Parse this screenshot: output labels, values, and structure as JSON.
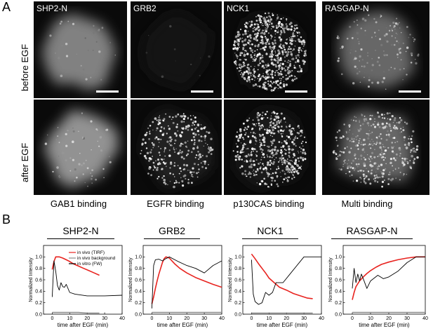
{
  "panel_a": {
    "letter": "A",
    "row_labels": [
      "before EGF",
      "after EGF"
    ],
    "columns": [
      {
        "protein": "SHP2-N",
        "binding": "GAB1 binding"
      },
      {
        "protein": "GRB2",
        "binding": "EGFR binding"
      },
      {
        "protein": "NCK1",
        "binding": "p130CAS binding"
      },
      {
        "protein": "RASGAP-N",
        "binding": "Multi binding"
      }
    ]
  },
  "panel_b": {
    "letter": "B",
    "legend": [
      "in vivo (TIRF)",
      "in vivo background",
      "in vitro (FW)"
    ],
    "colors": {
      "tirf": "#e8231f",
      "background": "#8a8a8a",
      "invitro": "#000000"
    }
  },
  "chart_data": [
    {
      "type": "line",
      "title": "SHP2-N",
      "xlabel": "time after EGF (min)",
      "ylabel": "Normalized Intensity",
      "xlim": [
        -5,
        40
      ],
      "ylim": [
        0,
        1.2
      ],
      "xticks": [
        0,
        10,
        20,
        30,
        40
      ],
      "yticks": [
        0.0,
        0.2,
        0.4,
        0.6,
        0.8,
        1.0
      ],
      "series": [
        {
          "name": "in vivo (TIRF)",
          "x": [
            0,
            1,
            2,
            4,
            6,
            8,
            10,
            12,
            15,
            18,
            21,
            24,
            27
          ],
          "y": [
            0.78,
            0.92,
            1.0,
            1.0,
            0.98,
            0.95,
            0.92,
            0.88,
            0.84,
            0.8,
            0.76,
            0.72,
            0.68
          ]
        },
        {
          "name": "in vivo background",
          "x": [
            0,
            5,
            10,
            15,
            20,
            25,
            27
          ],
          "y": [
            0.03,
            0.03,
            0.03,
            0.03,
            0.02,
            0.02,
            0.02
          ]
        },
        {
          "name": "in vitro (FW)",
          "x": [
            0,
            1,
            2,
            3,
            4,
            5,
            6,
            7,
            8,
            10,
            13,
            20,
            30,
            40
          ],
          "y": [
            0.3,
            0.93,
            0.75,
            0.5,
            0.42,
            0.55,
            0.48,
            0.47,
            0.52,
            0.38,
            0.35,
            0.32,
            0.32,
            0.33
          ]
        }
      ]
    },
    {
      "type": "line",
      "title": "GRB2",
      "xlabel": "time after EGF (min)",
      "ylabel": "Normalized Intensity",
      "xlim": [
        -5,
        40
      ],
      "ylim": [
        0,
        1.2
      ],
      "xticks": [
        0,
        10,
        20,
        30,
        40
      ],
      "yticks": [
        0.0,
        0.2,
        0.4,
        0.6,
        0.8,
        1.0
      ],
      "series": [
        {
          "name": "in vivo (TIRF)",
          "x": [
            0,
            1,
            2,
            3,
            4,
            5,
            6,
            7,
            8,
            10,
            13,
            16,
            20,
            25,
            30,
            35,
            40
          ],
          "y": [
            0.18,
            0.3,
            0.45,
            0.58,
            0.7,
            0.8,
            0.9,
            0.97,
            1.0,
            0.98,
            0.88,
            0.8,
            0.72,
            0.64,
            0.58,
            0.52,
            0.47
          ]
        },
        {
          "name": "in vivo background",
          "x": [
            0,
            10,
            20,
            30,
            40
          ],
          "y": [
            0.03,
            0.03,
            0.03,
            0.03,
            0.03
          ]
        },
        {
          "name": "in vitro (FW)",
          "x": [
            0,
            1,
            2,
            4,
            6,
            8,
            10,
            15,
            20,
            25,
            30,
            35,
            40
          ],
          "y": [
            0.1,
            0.85,
            0.95,
            0.96,
            0.93,
            0.97,
            1.0,
            0.92,
            0.85,
            0.8,
            0.72,
            0.85,
            0.93
          ]
        }
      ]
    },
    {
      "type": "line",
      "title": "NCK1",
      "xlabel": "time after EGF (min)",
      "ylabel": "Normalized Intensity",
      "xlim": [
        -5,
        40
      ],
      "ylim": [
        0,
        1.2
      ],
      "xticks": [
        0,
        10,
        20,
        30,
        40
      ],
      "yticks": [
        0.0,
        0.2,
        0.4,
        0.6,
        0.8,
        1.0
      ],
      "series": [
        {
          "name": "in vivo (TIRF)",
          "x": [
            0,
            2,
            4,
            6,
            8,
            10,
            13,
            16,
            20,
            24,
            28,
            32,
            35
          ],
          "y": [
            1.05,
            0.97,
            0.88,
            0.8,
            0.72,
            0.63,
            0.55,
            0.47,
            0.42,
            0.36,
            0.32,
            0.28,
            0.27
          ]
        },
        {
          "name": "in vivo background",
          "x": [
            0,
            10,
            20,
            30,
            35
          ],
          "y": [
            0.02,
            0.02,
            0.02,
            0.02,
            0.02
          ]
        },
        {
          "name": "in vitro (FW)",
          "x": [
            0,
            1,
            2,
            4,
            6,
            8,
            10,
            12,
            14,
            18,
            22,
            30,
            40
          ],
          "y": [
            0.95,
            0.35,
            0.22,
            0.17,
            0.2,
            0.38,
            0.33,
            0.38,
            0.55,
            0.55,
            0.7,
            1.0,
            1.0
          ]
        }
      ]
    },
    {
      "type": "line",
      "title": "RASGAP-N",
      "xlabel": "time after EGF (min)",
      "ylabel": "Normalized Intensity",
      "xlim": [
        -5,
        40
      ],
      "ylim": [
        0,
        1.2
      ],
      "xticks": [
        0,
        10,
        20,
        30,
        40
      ],
      "yticks": [
        0.0,
        0.2,
        0.4,
        0.6,
        0.8,
        1.0
      ],
      "series": [
        {
          "name": "in vivo (TIRF)",
          "x": [
            0,
            1,
            2,
            4,
            6,
            8,
            10,
            13,
            16,
            20,
            25,
            30,
            35,
            40
          ],
          "y": [
            0.25,
            0.38,
            0.48,
            0.58,
            0.65,
            0.71,
            0.76,
            0.82,
            0.87,
            0.91,
            0.95,
            0.98,
            1.0,
            1.0
          ]
        },
        {
          "name": "in vivo background",
          "x": [
            0,
            10,
            20,
            30,
            40
          ],
          "y": [
            0.03,
            0.03,
            0.03,
            0.03,
            0.03
          ]
        },
        {
          "name": "in vitro (FW)",
          "x": [
            0,
            1,
            2,
            3,
            4,
            5,
            6,
            8,
            10,
            14,
            17,
            20,
            25,
            30,
            35,
            40
          ],
          "y": [
            0.45,
            0.8,
            0.55,
            0.7,
            0.58,
            0.7,
            0.62,
            0.45,
            0.58,
            0.68,
            0.62,
            0.65,
            0.75,
            0.9,
            1.0,
            1.0
          ]
        }
      ]
    }
  ]
}
